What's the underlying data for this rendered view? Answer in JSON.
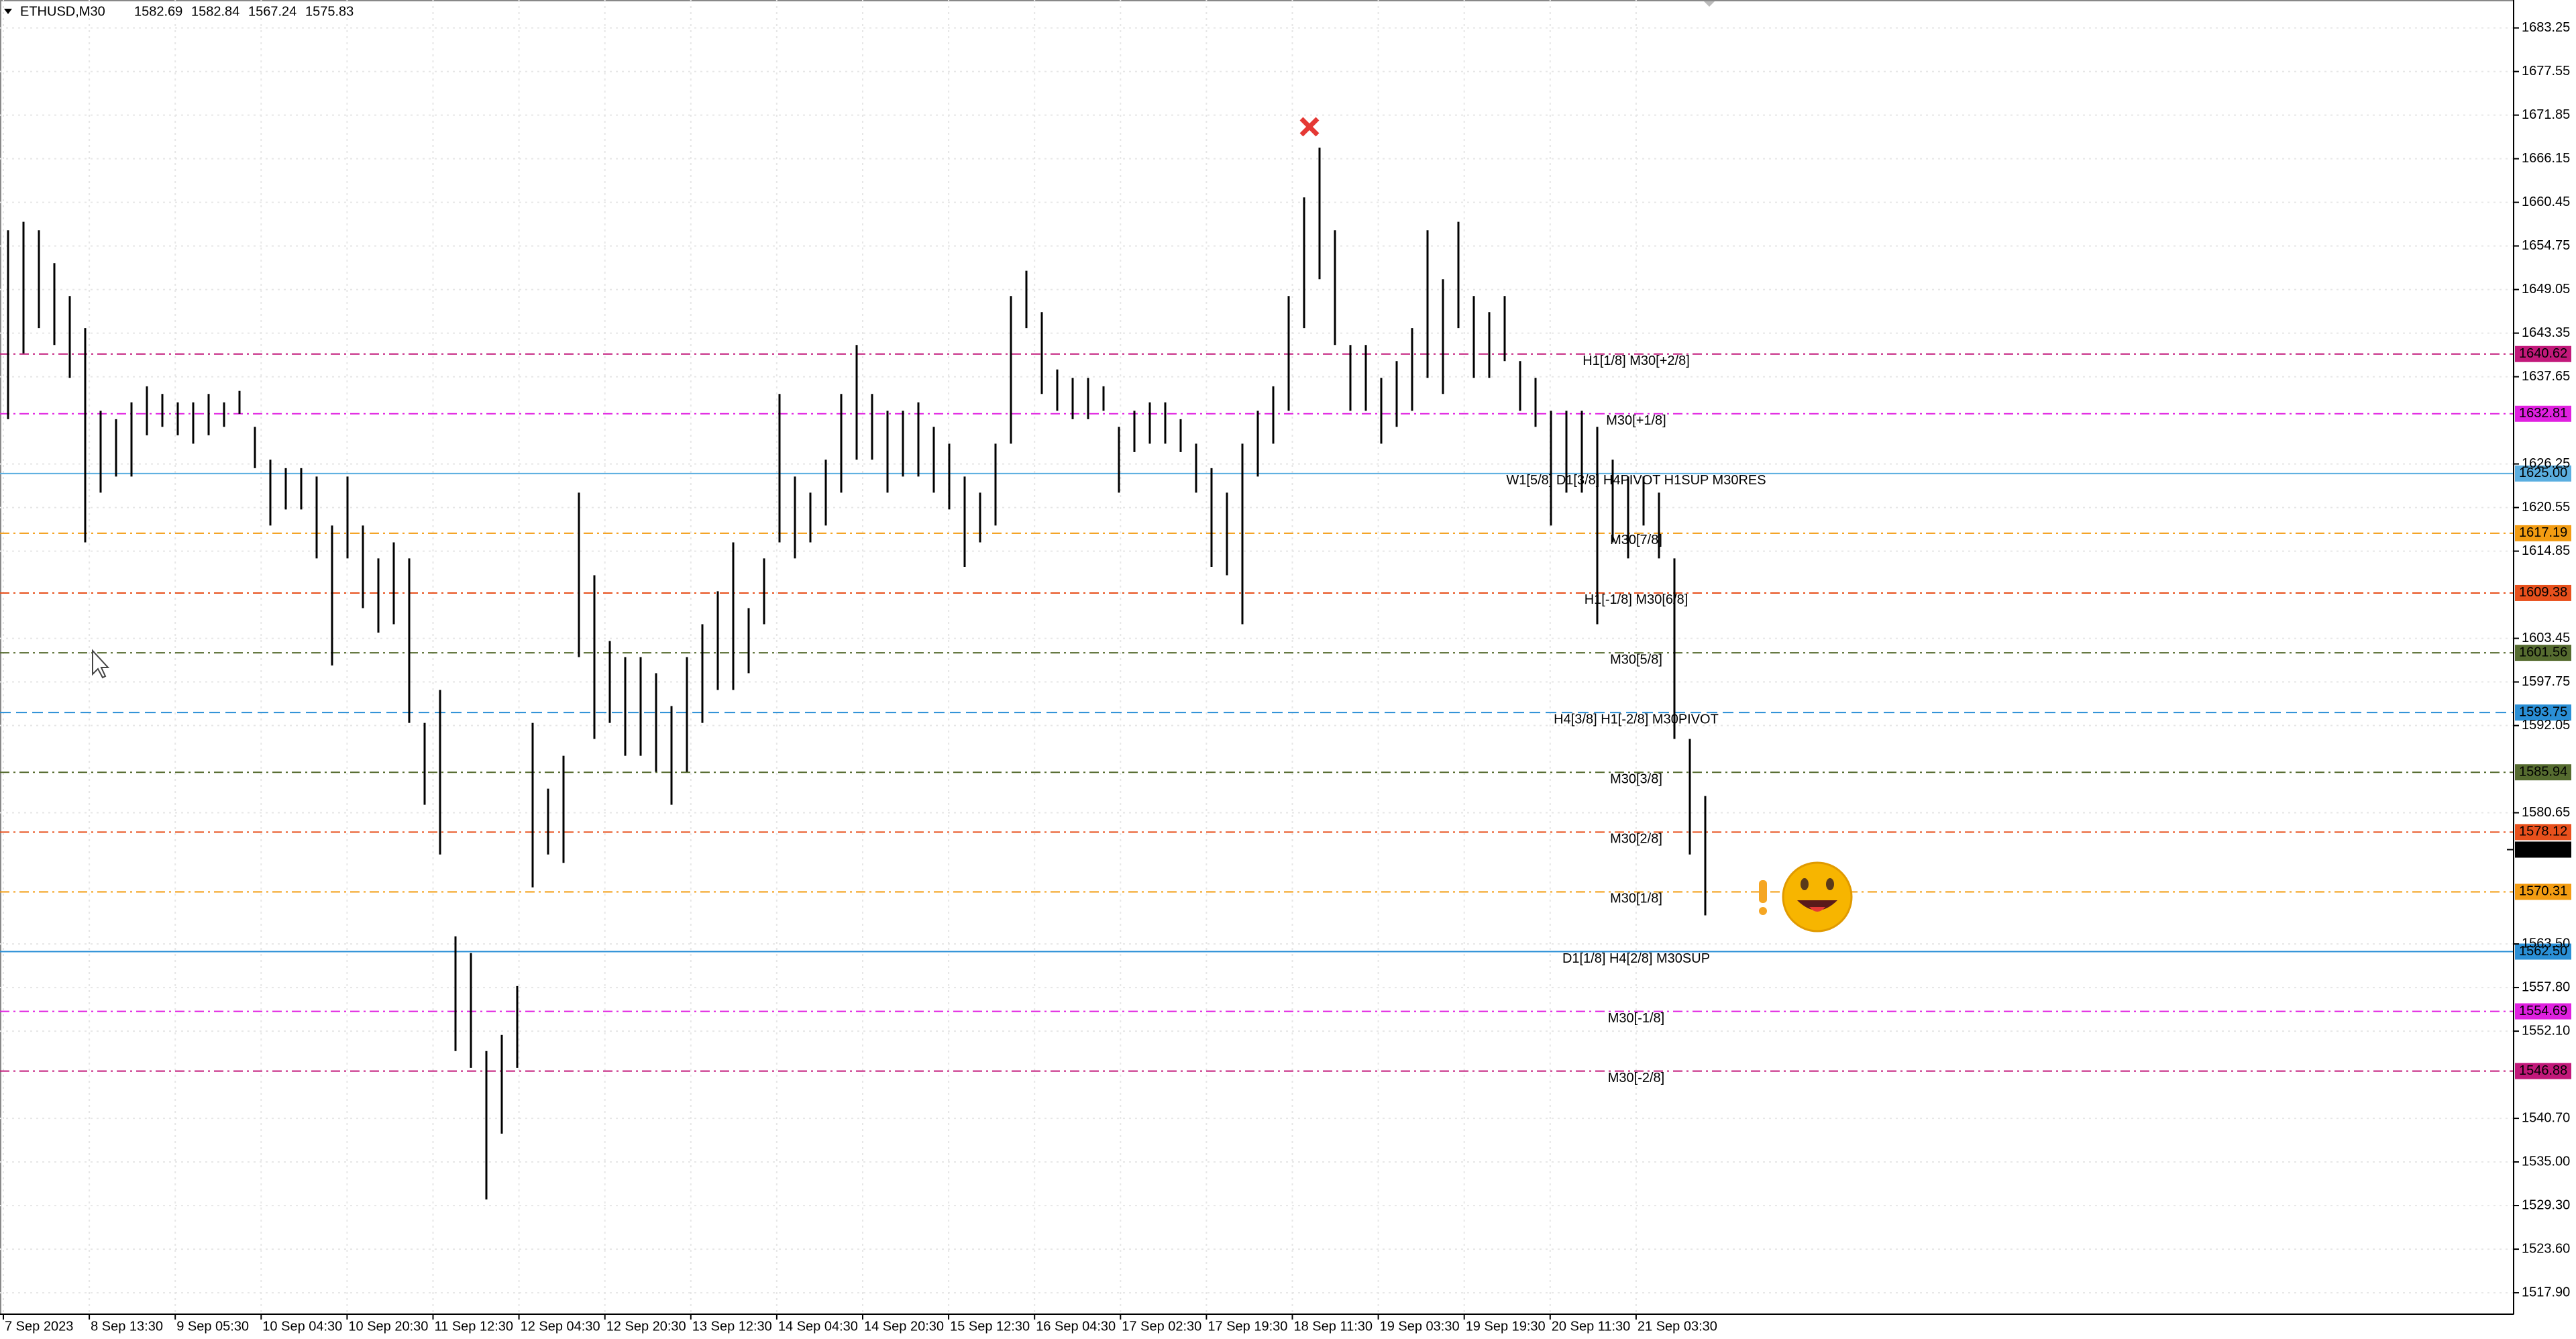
{
  "chart_data": {
    "type": "ohlc",
    "symbol": "ETHUSD,M30",
    "header_values": [
      1582.69,
      1582.84,
      1567.24,
      1575.83
    ],
    "color": "#000000",
    "ylim": [
      1515.1,
      1686.9
    ],
    "yticks": [
      1683.25,
      1677.55,
      1671.85,
      1666.15,
      1660.45,
      1654.75,
      1649.05,
      1643.35,
      1637.65,
      1626.25,
      1620.55,
      1614.85,
      1603.45,
      1597.75,
      1592.05,
      1580.65,
      {
        "value": 1563.5,
        "label": "1563.50"
      },
      {
        "value": 1557.8,
        "label": "1557.80"
      },
      {
        "value": 1552.1,
        "label": "1552.10"
      },
      {
        "value": 1540.7,
        "label": "1540.70"
      },
      {
        "value": 1535.0,
        "label": "1535.00"
      },
      {
        "value": 1529.3,
        "label": "1529.30"
      },
      {
        "value": 1523.6,
        "label": "1523.60"
      },
      {
        "value": 1517.9,
        "label": "1517.90"
      }
    ],
    "x_labels": [
      "7 Sep 2023",
      "8 Sep 13:30",
      "9 Sep 05:30",
      "10 Sep 04:30",
      "10 Sep 20:30",
      "11 Sep 12:30",
      "12 Sep 04:30",
      "12 Sep 20:30",
      "13 Sep 12:30",
      "14 Sep 04:30",
      "14 Sep 20:30",
      "15 Sep 12:30",
      "16 Sep 04:30",
      "17 Sep 02:30",
      "17 Sep 19:30",
      "18 Sep 11:30",
      "19 Sep 03:30",
      "19 Sep 19:30",
      "20 Sep 11:30",
      "21 Sep 03:30"
    ],
    "high": [
      1656.8,
      1657.9,
      1656.8,
      1652.5,
      1648.2,
      1644.0,
      1633.2,
      1632.1,
      1634.3,
      1636.4,
      1635.4,
      1634.3,
      1634.3,
      1635.4,
      1634.3,
      1635.8,
      1631.1,
      1626.8,
      1625.7,
      1625.7,
      1624.6,
      1618.2,
      1624.6,
      1618.2,
      1613.9,
      1616.0,
      1613.9,
      1592.4,
      1596.7,
      1564.5,
      1562.3,
      1549.5,
      1551.6,
      1558.0,
      1592.4,
      1583.8,
      1588.1,
      1622.5,
      1611.7,
      1603.1,
      1601.0,
      1601.0,
      1598.9,
      1594.6,
      1601.0,
      1605.3,
      1609.6,
      1616.0,
      1607.4,
      1613.9,
      1635.4,
      1624.6,
      1622.5,
      1626.8,
      1635.4,
      1641.8,
      1635.4,
      1633.2,
      1633.2,
      1634.3,
      1631.1,
      1628.9,
      1624.6,
      1622.5,
      1628.9,
      1648.2,
      1651.5,
      1646.1,
      1638.6,
      1637.5,
      1637.5,
      1636.4,
      1631.1,
      1633.2,
      1634.3,
      1634.3,
      1632.1,
      1628.9,
      1625.7,
      1622.5,
      1628.9,
      1633.2,
      1636.4,
      1648.2,
      1661.1,
      1667.6,
      1656.8,
      1641.8,
      1641.8,
      1637.5,
      1639.7,
      1644.0,
      1656.8,
      1650.4,
      1657.9,
      1648.2,
      1646.1,
      1648.2,
      1639.7,
      1637.5,
      1633.2,
      1633.2,
      1633.2,
      1631.1,
      1626.8,
      1624.6,
      1624.6,
      1622.5,
      1613.9,
      1590.3,
      1582.84
    ],
    "low": [
      1632.1,
      1640.7,
      1644.0,
      1641.8,
      1637.5,
      1616.0,
      1622.5,
      1624.6,
      1624.6,
      1630.0,
      1631.1,
      1630.0,
      1628.9,
      1630.0,
      1631.1,
      1632.8,
      1625.7,
      1618.2,
      1620.3,
      1620.3,
      1613.9,
      1599.9,
      1613.9,
      1607.4,
      1604.2,
      1605.3,
      1592.4,
      1581.7,
      1575.2,
      1549.5,
      1547.3,
      1530.1,
      1538.7,
      1547.3,
      1570.9,
      1575.2,
      1574.1,
      1601.0,
      1590.3,
      1592.4,
      1588.1,
      1588.1,
      1586.0,
      1581.7,
      1586.0,
      1592.4,
      1596.7,
      1596.7,
      1598.9,
      1605.3,
      1616.0,
      1613.9,
      1616.0,
      1618.2,
      1622.5,
      1626.8,
      1626.8,
      1622.5,
      1624.6,
      1624.6,
      1622.5,
      1620.3,
      1612.8,
      1616.0,
      1618.2,
      1628.9,
      1644.0,
      1635.4,
      1633.2,
      1632.1,
      1632.1,
      1633.2,
      1622.5,
      1627.8,
      1628.9,
      1628.9,
      1627.8,
      1622.5,
      1612.8,
      1611.7,
      1605.3,
      1624.6,
      1628.9,
      1633.2,
      1644.0,
      1650.4,
      1641.8,
      1633.2,
      1633.2,
      1628.9,
      1631.1,
      1633.2,
      1637.5,
      1635.4,
      1644.0,
      1637.5,
      1637.5,
      1639.7,
      1633.2,
      1631.1,
      1618.2,
      1622.5,
      1622.5,
      1605.3,
      1616.0,
      1613.9,
      1618.2,
      1613.9,
      1590.3,
      1575.2,
      1567.24
    ],
    "levels": [
      {
        "value": 1640.62,
        "label": "H1[1/8] M30[+2/8]",
        "color": "#c2187a",
        "style": "dashdot"
      },
      {
        "value": 1632.81,
        "label": "M30[+1/8]",
        "color": "#e020e0",
        "style": "dashdot"
      },
      {
        "value": 1625.0,
        "value_label": "1625.00",
        "label": "W1[5/8] D1[3/8] H4PIVOT H1SUP M30RES",
        "color": "#5aaee0",
        "style": "solid"
      },
      {
        "value": 1617.19,
        "label": "M30[7/8]",
        "color": "#f39c12",
        "style": "dashdot"
      },
      {
        "value": 1609.38,
        "label": "H1[-1/8] M30[6/8]",
        "color": "#e8501c",
        "style": "dashdot"
      },
      {
        "value": 1601.56,
        "label": "M30[5/8]",
        "color": "#556b2f",
        "style": "dashdot"
      },
      {
        "value": 1593.75,
        "label": "H4[3/8] H1[-2/8] M30PIVOT",
        "color": "#2a8fd6",
        "style": "dash"
      },
      {
        "value": 1585.94,
        "label": "M30[3/8]",
        "color": "#556b2f",
        "style": "dashdot"
      },
      {
        "value": 1578.12,
        "label": "M30[2/8]",
        "color": "#e8501c",
        "style": "dashdot"
      },
      {
        "value": 1570.31,
        "label": "M30[1/8]",
        "color": "#f39c12",
        "style": "dashdot"
      },
      {
        "value": 1562.5,
        "value_label": "1562.50",
        "label": "D1[1/8] H4[2/8] M30SUP",
        "color": "#2a8fd6",
        "style": "solid"
      },
      {
        "value": 1554.69,
        "label": "M30[-1/8]",
        "color": "#e020e0",
        "style": "dashdot"
      },
      {
        "value": 1546.88,
        "label": "M30[-2/8]",
        "color": "#c2187a",
        "style": "dashdot"
      }
    ],
    "grid": true
  }
}
